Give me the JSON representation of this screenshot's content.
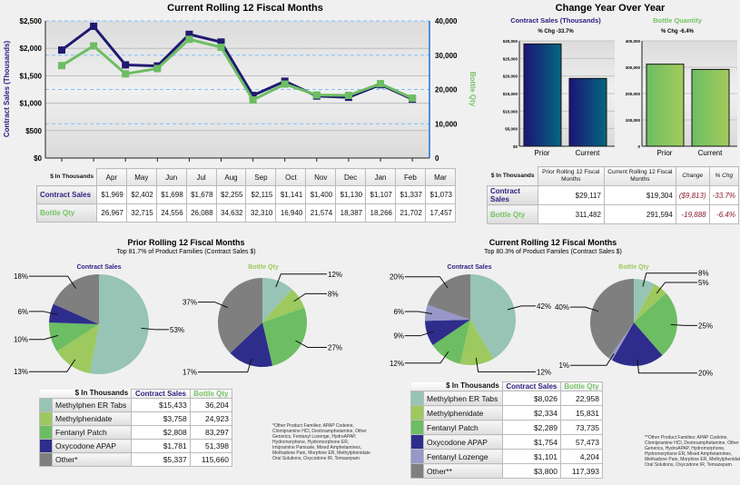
{
  "chart_data": [
    {
      "type": "line",
      "title": "Current Rolling 12 Fiscal Months",
      "categories": [
        "Apr",
        "May",
        "Jun",
        "Jul",
        "Aug",
        "Sep",
        "Oct",
        "Nov",
        "Dec",
        "Jan",
        "Feb",
        "Mar"
      ],
      "ylabel": "Contract Sales (Thousands)",
      "y2label": "Bottle Qty",
      "ylim": [
        0,
        2500
      ],
      "y2lim": [
        0,
        40000
      ],
      "yticks": [
        "$0",
        "$500",
        "$1,000",
        "$1,500",
        "$2,000",
        "$2,500"
      ],
      "y2ticks": [
        "0",
        "10,000",
        "20,000",
        "30,000",
        "40,000"
      ],
      "grid": true,
      "series": [
        {
          "name": "Contract Sales",
          "axis": "left",
          "color": "#1f1a70",
          "values": [
            1969,
            2402,
            1698,
            1678,
            2255,
            2115,
            1141,
            1400,
            1130,
            1107,
            1337,
            1073
          ]
        },
        {
          "name": "Bottle Qty",
          "axis": "right",
          "color": "#6dbd63",
          "values": [
            26967,
            32715,
            24556,
            26088,
            34632,
            32310,
            16940,
            21574,
            18387,
            18266,
            21702,
            17457
          ]
        }
      ]
    },
    {
      "type": "bar",
      "title": "Contract Sales (Thousands)",
      "subtitle": "% Chg -33.7%",
      "categories": [
        "Prior",
        "Current"
      ],
      "values": [
        29117,
        19304
      ],
      "ylim": [
        0,
        30000
      ],
      "yticks": [
        "$0",
        "$5,000",
        "$10,000",
        "$15,000",
        "$20,000",
        "$25,000",
        "$30,000"
      ]
    },
    {
      "type": "bar",
      "title": "Bottle Quantity",
      "subtitle": "% Chg -6.4%",
      "categories": [
        "Prior",
        "Current"
      ],
      "values": [
        311482,
        291594
      ],
      "ylim": [
        0,
        400000
      ],
      "yticks": [
        "0",
        "100,000",
        "200,000",
        "300,000",
        "400,000"
      ]
    },
    {
      "type": "pie",
      "title": "Contract Sales",
      "categories": [
        "Methylphen ER Tabs",
        "Methylphenidate",
        "Fentanyl Patch",
        "Oxycodone APAP",
        "Other*"
      ],
      "values": [
        15433,
        3758,
        2808,
        1781,
        5337
      ],
      "labels": [
        "53%",
        "13%",
        "10%",
        "6%",
        "18%"
      ]
    },
    {
      "type": "pie",
      "title": "Bottle Qty",
      "categories": [
        "Methylphen ER Tabs",
        "Methylphenidate",
        "Fentanyl Patch",
        "Oxycodone APAP",
        "Other*"
      ],
      "values": [
        36204,
        24923,
        83297,
        51398,
        115660
      ],
      "labels": [
        "12%",
        "8%",
        "27%",
        "17%",
        "37%"
      ]
    },
    {
      "type": "pie",
      "title": "Contract Sales",
      "categories": [
        "Methylphen ER Tabs",
        "Methylphenidate",
        "Fentanyl Patch",
        "Oxycodone APAP",
        "Fentanyl Lozenge",
        "Other**"
      ],
      "values": [
        8026,
        2334,
        2289,
        1754,
        1101,
        3800
      ],
      "labels": [
        "42%",
        "12%",
        "12%",
        "9%",
        "6%",
        "20%"
      ]
    },
    {
      "type": "pie",
      "title": "Bottle Qty",
      "categories": [
        "Methylphen ER Tabs",
        "Methylphenidate",
        "Fentanyl Patch",
        "Oxycodone APAP",
        "Fentanyl Lozenge",
        "Other**"
      ],
      "values": [
        22958,
        15831,
        73735,
        57473,
        4204,
        117393
      ],
      "labels": [
        "8%",
        "5%",
        "25%",
        "20%",
        "1%",
        "40%"
      ]
    }
  ],
  "colors": {
    "navy": "#2a1f80",
    "green": "#74c363",
    "slices": [
      "#97c4b4",
      "#9dc95f",
      "#6dbd63",
      "#2e2d8c",
      "#9897c8",
      "#7f7f7f"
    ]
  },
  "monthly_table": {
    "corner": "$ In Thousands",
    "row_labels": [
      "Contract Sales",
      "Bottle Qty"
    ],
    "contract": [
      "$1,969",
      "$2,402",
      "$1,698",
      "$1,678",
      "$2,255",
      "$2,115",
      "$1,141",
      "$1,400",
      "$1,130",
      "$1,107",
      "$1,337",
      "$1,073"
    ],
    "bottle": [
      "26,967",
      "32,715",
      "24,556",
      "26,088",
      "34,632",
      "32,310",
      "16,940",
      "21,574",
      "18,387",
      "18,266",
      "21,702",
      "17,457"
    ]
  },
  "yoy": {
    "title": "Change Year Over Year",
    "table": {
      "corner": "$ In Thousands",
      "headers": [
        "Prior Rolling 12 Fiscal Months",
        "Current Rolling 12 Fiscal Months",
        "Change",
        "% Chg"
      ],
      "rows": [
        {
          "label": "Contract Sales",
          "prior": "$29,117",
          "current": "$19,304",
          "change": "($9,813)",
          "pct": "-33.7%"
        },
        {
          "label": "Bottle Qty",
          "prior": "311,482",
          "current": "291,594",
          "change": "-19,888",
          "pct": "-6.4%"
        }
      ]
    }
  },
  "prior": {
    "title": "Prior Rolling 12 Fiscal Months",
    "subtitle": "Top 81.7% of Product Families (Contract Sales $)",
    "table": {
      "corner": "$ In Thousands",
      "headers": [
        "Contract Sales",
        "Bottle Qty"
      ],
      "rows": [
        [
          "Methylphen ER Tabs",
          "$15,433",
          "36,204"
        ],
        [
          "Methylphenidate",
          "$3,758",
          "24,923"
        ],
        [
          "Fentanyl Patch",
          "$2,808",
          "83,297"
        ],
        [
          "Oxycodone APAP",
          "$1,781",
          "51,398"
        ],
        [
          "Other*",
          "$5,337",
          "115,660"
        ]
      ]
    },
    "footnote": "*Other Product Families: APAP Codeine, Clomipramine HCl, Dextroamphetamine, Other Generics, Fentanyl Lozenge, HydroAPAP, Hydromorphone, Hydromorphone ER, Imipramine Pamoate, Mixed Amphetamines, Methadone Pain, Morphine ER, Methylphenidate Oral Solutions, Oxycodone IR, Temazepam."
  },
  "current": {
    "title": "Current Rolling 12 Fiscal Months",
    "subtitle": "Top 80.3% of Product Familes (Contract Sales $)",
    "table": {
      "corner": "$ In Thousands",
      "headers": [
        "Contract Sales",
        "Bottle Qty"
      ],
      "rows": [
        [
          "Methylphen ER Tabs",
          "$8,026",
          "22,958"
        ],
        [
          "Methylphenidate",
          "$2,334",
          "15,831"
        ],
        [
          "Fentanyl Patch",
          "$2,289",
          "73,735"
        ],
        [
          "Oxycodone APAP",
          "$1,754",
          "57,473"
        ],
        [
          "Fentanyl Lozenge",
          "$1,101",
          "4,204"
        ],
        [
          "Other**",
          "$3,800",
          "117,393"
        ]
      ]
    },
    "footnote": "**Other Product Families: APAP Codeine, Clomipramine HCl, Dextroamphetamine, Other Generics, HydroAPAP, Hydromorphone, Hydromorphone ER, Mixed Amphetamines, Methadone Pain, Morphine ER, Methylphenidate Oral Solutions, Oxycodone IR, Temazepam."
  }
}
